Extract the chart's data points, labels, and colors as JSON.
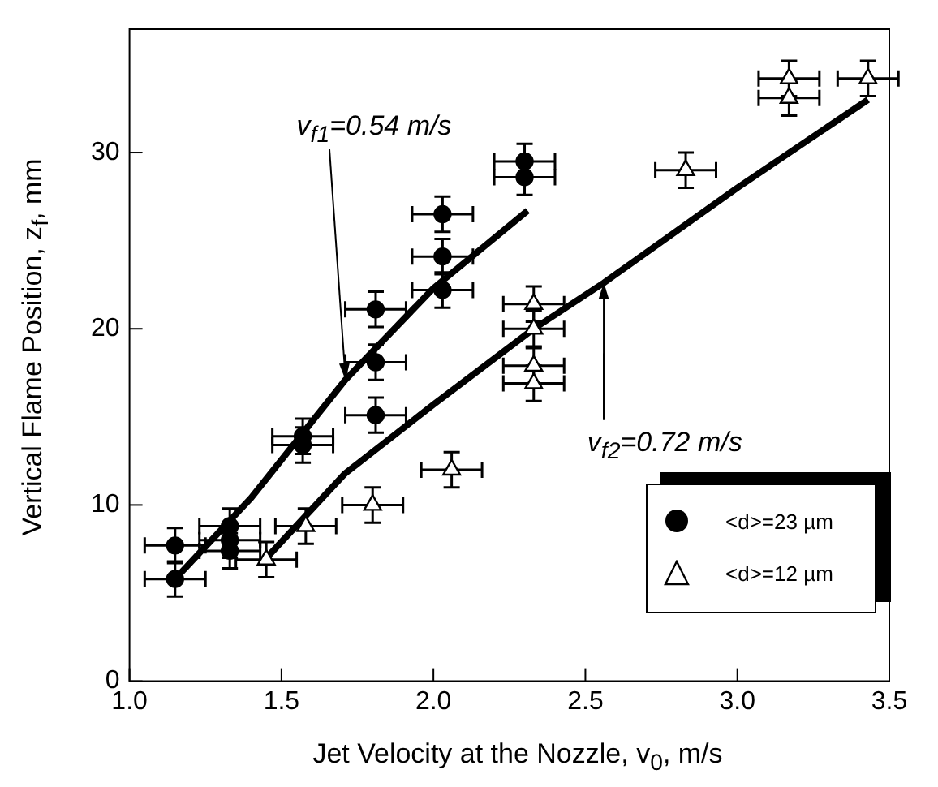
{
  "chart_data": {
    "type": "scatter",
    "xlabel": "Jet Velocity at the Nozzle,  v$_{0}$, m/s",
    "ylabel": "Vertical Flame Position,  z$_{f}$, mm",
    "xlim": [
      1,
      3.5
    ],
    "ylim": [
      0,
      37
    ],
    "xticks": [
      {
        "value": 1,
        "label": "1.0"
      },
      {
        "value": 1.5,
        "label": "1.5"
      },
      {
        "value": 2,
        "label": "2.0"
      },
      {
        "value": 2.5,
        "label": "2.5"
      },
      {
        "value": 3,
        "label": "3.0"
      },
      {
        "value": 3.5,
        "label": "3.5"
      }
    ],
    "yticks": [
      0,
      10,
      20,
      30
    ],
    "grid": false,
    "legend": "bottom right",
    "series": [
      {
        "name": "<d>=23 µm",
        "color": "#000000",
        "marker": "circle",
        "x": [
          1.15,
          1.15,
          1.33,
          1.33,
          1.33,
          1.57,
          1.57,
          1.81,
          1.81,
          1.81,
          2.03,
          2.03,
          2.03,
          2.3,
          2.3
        ],
        "values": [
          7.7,
          5.8,
          8.8,
          8.0,
          7.4,
          13.9,
          13.4,
          21.1,
          18.1,
          15.1,
          26.5,
          24.1,
          22.2,
          29.5,
          28.6
        ],
        "errors": [
          1,
          1,
          1,
          1,
          1,
          1,
          1,
          1,
          1,
          1,
          1,
          1,
          1,
          1,
          1
        ],
        "xerrors": [
          0.1,
          0.1,
          0.1,
          0.1,
          0.1,
          0.1,
          0.1,
          0.1,
          0.1,
          0.1,
          0.1,
          0.1,
          0.1,
          0.1,
          0.1
        ]
      },
      {
        "name": "<d>=12 µm",
        "color": "#000000",
        "marker": "triangle",
        "x": [
          1.45,
          1.58,
          1.8,
          2.06,
          2.33,
          2.33,
          2.33,
          2.33,
          2.83,
          3.17,
          3.17,
          3.43
        ],
        "values": [
          6.9,
          8.8,
          10.0,
          12.0,
          21.4,
          20.0,
          17.9,
          16.9,
          29.0,
          34.2,
          33.1,
          34.2
        ],
        "errors": [
          1,
          1,
          1,
          1,
          1,
          1,
          1,
          1,
          1,
          1,
          1,
          1
        ],
        "xerrors": [
          0.1,
          0.1,
          0.1,
          0.1,
          0.1,
          0.1,
          0.1,
          0.1,
          0.1,
          0.1,
          0.1,
          0.1
        ]
      },
      {
        "type": "line",
        "color": "#000000",
        "marker": "none",
        "x": [
          1.15,
          1.4,
          1.71,
          2.0,
          2.31
        ],
        "values": [
          5.8,
          10.4,
          17.1,
          22.3,
          26.7
        ]
      },
      {
        "type": "line",
        "color": "#000000",
        "marker": "none",
        "x": [
          1.44,
          1.71,
          2.0,
          2.33,
          2.56,
          3.0,
          3.43
        ],
        "values": [
          6.8,
          11.8,
          15.7,
          20.0,
          22.6,
          28.0,
          33.0
        ]
      }
    ],
    "annotations": [
      {
        "text": "v$_{f1}$=0.54 m/s",
        "x": 1.71,
        "y": 17.1
      },
      {
        "text": "v$_{f2}$=0.72 m/s",
        "x": 2.56,
        "y": 22.6
      }
    ]
  }
}
